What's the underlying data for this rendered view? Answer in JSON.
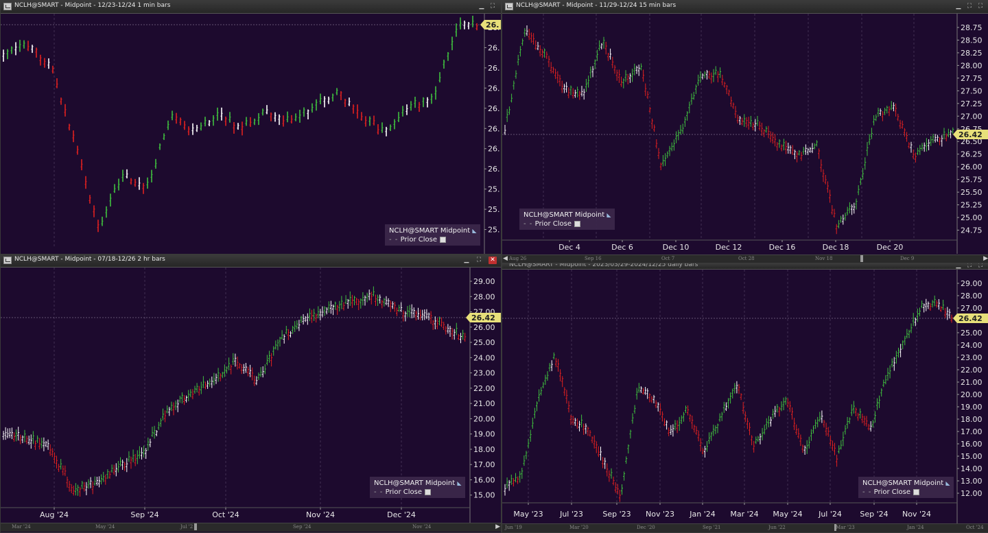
{
  "panels": [
    {
      "title": "NCLH@SMART - Midpoint - 12/23-12/24 1 min bars",
      "legend_name": "NCLH@SMART Midpoint",
      "legend_prior": "Prior Close",
      "price_tag": "26.",
      "y_ticks": [
        "26.",
        "26.",
        "26.",
        "26.",
        "26.",
        "26.",
        "26.",
        "26.",
        "25.",
        "25.",
        "25."
      ],
      "x_ticks": [],
      "has_close_button": false
    },
    {
      "title": "NCLH@SMART - Midpoint - 11/29-12/24 15 min bars",
      "legend_name": "NCLH@SMART Midpoint",
      "legend_prior": "Prior Close",
      "price_tag": "26.42",
      "y_ticks": [
        "28.75",
        "28.50",
        "28.25",
        "28.00",
        "27.75",
        "27.50",
        "27.25",
        "27.00",
        "26.75",
        "26.50",
        "26.25",
        "26.00",
        "25.75",
        "25.50",
        "25.25",
        "25.00",
        "24.75"
      ],
      "x_ticks": [
        "Dec 4",
        "Dec 6",
        "Dec 10",
        "Dec 12",
        "Dec 16",
        "Dec 18",
        "Dec 20"
      ],
      "scroll_labels": [
        "Aug 26",
        "Sep 16",
        "Oct 7",
        "Oct 28",
        "Nov 18",
        "Dec 9"
      ],
      "has_close_button": false
    },
    {
      "title": "NCLH@SMART - Midpoint - 07/18-12/26 2 hr bars",
      "legend_name": "NCLH@SMART Midpoint",
      "legend_prior": "Prior Close",
      "price_tag": "26.42",
      "y_ticks": [
        "29.00",
        "28.00",
        "27.00",
        "26.00",
        "25.00",
        "24.00",
        "23.00",
        "22.00",
        "21.00",
        "20.00",
        "19.00",
        "18.00",
        "17.00",
        "16.00",
        "15.00"
      ],
      "x_ticks": [
        "Aug '24",
        "Sep '24",
        "Oct '24",
        "Nov '24",
        "Dec '24"
      ],
      "scroll_labels": [
        "Mar '24",
        "May '24",
        "Jul '2",
        "Sep '24",
        "Nov '24"
      ],
      "has_close_button": true
    },
    {
      "title": "NCLH@SMART - Midpoint - 2023/03/29-2024/12/25 daily bars",
      "legend_name": "NCLH@SMART Midpoint",
      "legend_prior": "Prior Close",
      "price_tag": "26.42",
      "y_ticks": [
        "29.00",
        "28.00",
        "27.00",
        "26.00",
        "25.00",
        "24.00",
        "23.00",
        "22.00",
        "21.00",
        "20.00",
        "19.00",
        "18.00",
        "17.00",
        "16.00",
        "15.00",
        "14.00",
        "13.00",
        "12.00"
      ],
      "x_ticks": [
        "May '23",
        "Jul '23",
        "Sep '23",
        "Nov '23",
        "Jan '24",
        "Mar '24",
        "May '24",
        "Jul '24",
        "Sep '24",
        "Nov '24"
      ],
      "scroll_labels": [
        "Jun '19",
        "Mar '20",
        "Dec '20",
        "Sep '21",
        "Jun '22",
        "Mar '23",
        "Jan '24",
        "Oct '24"
      ],
      "has_close_button": false
    }
  ],
  "colors": {
    "background": "#1d0a2e",
    "up_bar": "#3fbf3f",
    "down_bar": "#e02020",
    "neutral_bar": "#ffffff",
    "price_tag": "#e8e07a",
    "grid": "#5a4a6a"
  }
}
